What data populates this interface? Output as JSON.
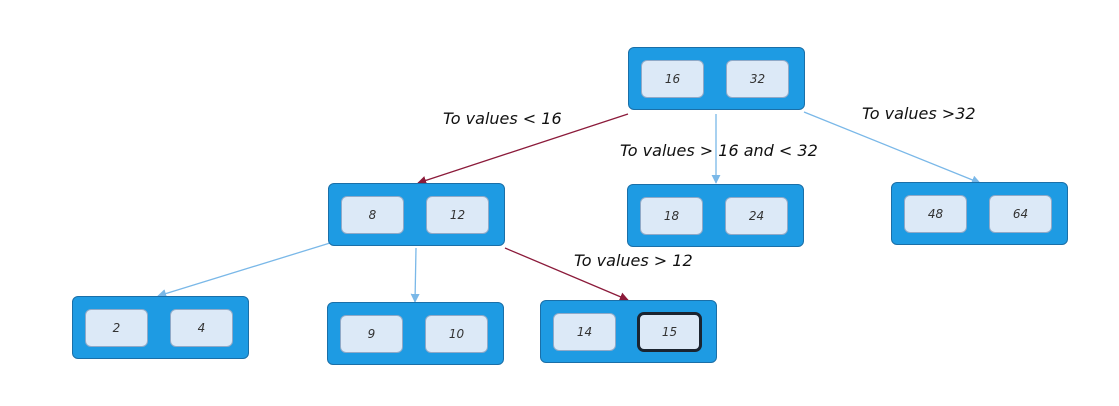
{
  "nodes": [
    {
      "id": "root",
      "keys": [
        "16",
        "32"
      ]
    },
    {
      "id": "mid-left",
      "keys": [
        "8",
        "12"
      ]
    },
    {
      "id": "mid-center",
      "keys": [
        "18",
        "24"
      ]
    },
    {
      "id": "mid-right",
      "keys": [
        "48",
        "64"
      ]
    },
    {
      "id": "leaf-a",
      "keys": [
        "2",
        "4"
      ]
    },
    {
      "id": "leaf-b",
      "keys": [
        "9",
        "10"
      ]
    },
    {
      "id": "leaf-c",
      "keys": [
        "14",
        "15"
      ],
      "selected_key": "15"
    }
  ],
  "edges": [
    {
      "from": "root",
      "to": "mid-left",
      "label": "To values < 16",
      "color": "#8b1a3a"
    },
    {
      "from": "root",
      "to": "mid-center",
      "label": "To values > 16 and < 32",
      "color": "#7ab8e8"
    },
    {
      "from": "root",
      "to": "mid-right",
      "label": "To values >32",
      "color": "#7ab8e8"
    },
    {
      "from": "mid-left",
      "to": "leaf-a",
      "label": "",
      "color": "#7ab8e8"
    },
    {
      "from": "mid-left",
      "to": "leaf-b",
      "label": "",
      "color": "#7ab8e8"
    },
    {
      "from": "mid-left",
      "to": "leaf-c",
      "label": "To values > 12",
      "color": "#8b1a3a"
    }
  ],
  "colors": {
    "node_fill": "#1e9be3",
    "key_fill": "#dce9f7",
    "highlight_edge": "#8b1a3a",
    "normal_edge": "#7ab8e8"
  }
}
